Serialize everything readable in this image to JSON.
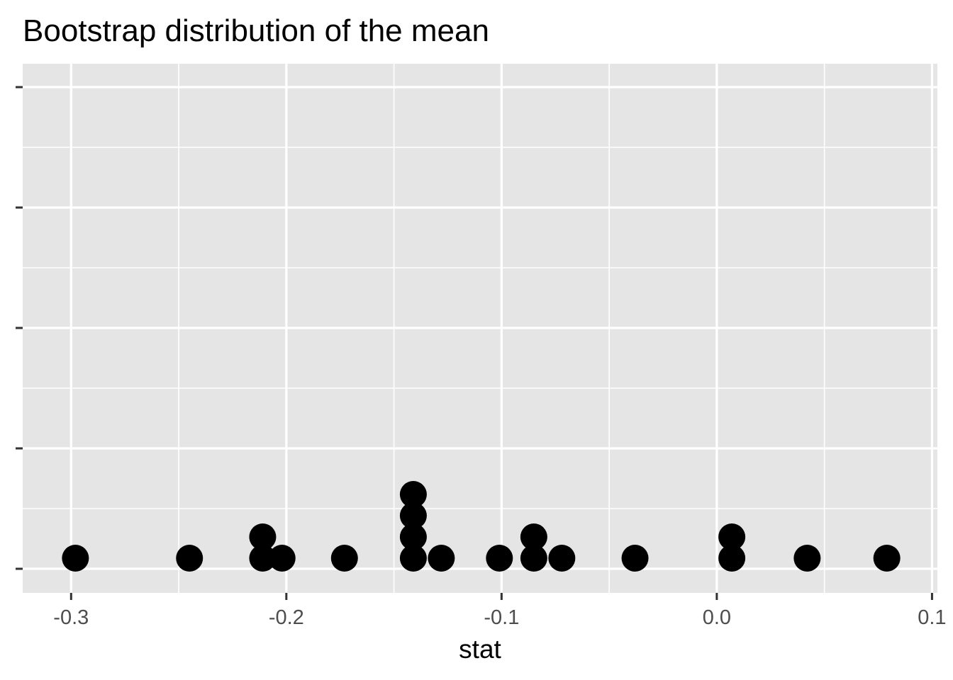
{
  "chart_data": {
    "type": "scatter",
    "subtype": "dotplot",
    "title": "Bootstrap distribution of the mean",
    "xlabel": "stat",
    "ylabel": "",
    "x_ticks": [
      "-0.3",
      "-0.2",
      "-0.1",
      "0.0",
      "0.1"
    ],
    "x_tick_values": [
      -0.3,
      -0.2,
      -0.1,
      0.0,
      0.1
    ],
    "xlim": [
      -0.3225,
      0.1025
    ],
    "y_ticks_labeled": false,
    "y_tick_count": 5,
    "grid": true,
    "legend": "none",
    "colors": {
      "panel_background": "#e5e5e5",
      "gridline": "#ffffff",
      "dot": "#000000",
      "tick": "#333333"
    },
    "stacks": [
      {
        "x": -0.298,
        "count": 1
      },
      {
        "x": -0.245,
        "count": 1
      },
      {
        "x": -0.211,
        "count": 2
      },
      {
        "x": -0.202,
        "count": 1
      },
      {
        "x": -0.173,
        "count": 1
      },
      {
        "x": -0.141,
        "count": 4
      },
      {
        "x": -0.128,
        "count": 1
      },
      {
        "x": -0.101,
        "count": 1
      },
      {
        "x": -0.085,
        "count": 2
      },
      {
        "x": -0.072,
        "count": 1
      },
      {
        "x": -0.038,
        "count": 1
      },
      {
        "x": 0.007,
        "count": 2
      },
      {
        "x": 0.042,
        "count": 1
      },
      {
        "x": 0.079,
        "count": 1
      }
    ]
  }
}
